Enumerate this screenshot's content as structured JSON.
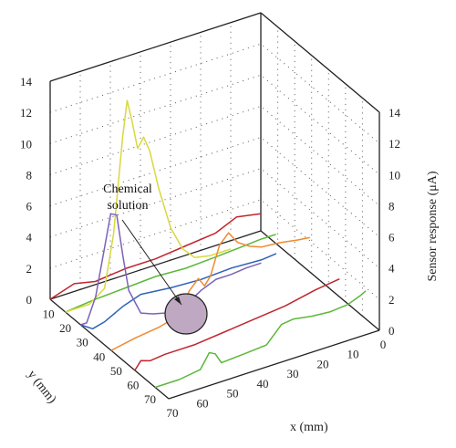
{
  "chart_data": {
    "type": "line",
    "projection": "3d",
    "x_axis": {
      "label": "x (mm)",
      "ticks": [
        "70",
        "60",
        "50",
        "40",
        "30",
        "20",
        "10",
        "0"
      ],
      "range": [
        0,
        70
      ]
    },
    "y_axis": {
      "label": "y (mm)",
      "ticks": [
        "10",
        "20",
        "30",
        "40",
        "50",
        "60",
        "70"
      ],
      "range": [
        0,
        70
      ]
    },
    "z_axis": {
      "label": "Sensor response (μA)",
      "ticks": [
        "0",
        "2",
        "4",
        "6",
        "8",
        "10",
        "12",
        "14"
      ],
      "range": [
        0,
        14
      ]
    },
    "grid": "dotted back walls",
    "annotation": {
      "line1": "Chemical",
      "line2": "solution"
    },
    "colors": {
      "red": "#c0262e",
      "green": "#5cb83a",
      "blue": "#2f62b8",
      "purple": "#7b62b8",
      "yellow": "#d8d840",
      "orange": "#ee8a2e",
      "blob": "#bfa8c2"
    },
    "series": [
      {
        "y": 0,
        "color": "red",
        "points": [
          [
            70,
            0
          ],
          [
            62,
            0.5
          ],
          [
            55,
            0.2
          ],
          [
            45,
            0.4
          ],
          [
            35,
            0.4
          ],
          [
            25,
            0.6
          ],
          [
            15,
            0.8
          ],
          [
            8,
            1.4
          ],
          [
            0,
            1.1
          ]
        ]
      },
      {
        "y": 9,
        "color": "green",
        "points": [
          [
            70,
            0
          ],
          [
            60,
            0.2
          ],
          [
            50,
            0.3
          ],
          [
            40,
            0.4
          ],
          [
            30,
            0.3
          ],
          [
            20,
            0.4
          ],
          [
            12,
            0.5
          ],
          [
            5,
            0.6
          ],
          [
            0,
            0.6
          ]
        ]
      },
      {
        "y": 9,
        "color": "yellow",
        "points": [
          [
            70,
            0
          ],
          [
            62,
            0
          ],
          [
            57,
            0.7
          ],
          [
            54,
            4
          ],
          [
            51,
            10
          ],
          [
            49.5,
            12.3
          ],
          [
            48,
            11
          ],
          [
            46,
            9
          ],
          [
            44,
            9.6
          ],
          [
            42,
            8.6
          ],
          [
            39,
            6
          ],
          [
            35,
            3.2
          ],
          [
            31,
            1.6
          ],
          [
            27,
            0.8
          ],
          [
            22,
            0.6
          ],
          [
            18,
            0.6
          ],
          [
            15,
            0.6
          ]
        ]
      },
      {
        "y": 18,
        "color": "blue",
        "points": [
          [
            70,
            0
          ],
          [
            66,
            -0.5
          ],
          [
            62,
            -0.3
          ],
          [
            56,
            0.3
          ],
          [
            50,
            0.7
          ],
          [
            40,
            0.5
          ],
          [
            30,
            0.4
          ],
          [
            20,
            0.5
          ],
          [
            10,
            0.4
          ],
          [
            5,
            0.5
          ]
        ]
      },
      {
        "y": 18,
        "color": "purple",
        "points": [
          [
            70,
            0
          ],
          [
            68,
            0
          ],
          [
            65,
            1.5
          ],
          [
            62,
            4.5
          ],
          [
            60,
            6.5
          ],
          [
            58,
            6.3
          ],
          [
            56,
            3.6
          ],
          [
            54,
            1.2
          ],
          [
            50,
            -0.5
          ],
          [
            46,
            -0.8
          ],
          [
            42,
            -1
          ],
          [
            38,
            -0.6
          ],
          [
            34,
            -0.8
          ],
          [
            30,
            -0.3
          ],
          [
            25,
            0.1
          ],
          [
            20,
            0.1
          ],
          [
            15,
            0.2
          ],
          [
            10,
            0.2
          ]
        ]
      },
      {
        "y": 36,
        "color": "orange",
        "points": [
          [
            70,
            0
          ],
          [
            62,
            0.3
          ],
          [
            54,
            0.5
          ],
          [
            48,
            0.8
          ],
          [
            44,
            2.2
          ],
          [
            41,
            2.8
          ],
          [
            39,
            2.2
          ],
          [
            37,
            2.7
          ],
          [
            34,
            4.5
          ],
          [
            31,
            5.1
          ],
          [
            28,
            4.3
          ],
          [
            24,
            3.8
          ],
          [
            20,
            3.5
          ],
          [
            14,
            3.4
          ],
          [
            8,
            3.2
          ],
          [
            4,
            3.1
          ]
        ]
      },
      {
        "y": 50,
        "color": "red",
        "points": [
          [
            70,
            0
          ],
          [
            68,
            0.5
          ],
          [
            65,
            0.3
          ],
          [
            60,
            0.4
          ],
          [
            50,
            0.4
          ],
          [
            40,
            0.6
          ],
          [
            30,
            0.8
          ],
          [
            20,
            1
          ],
          [
            10,
            1.4
          ],
          [
            2,
            1.6
          ]
        ]
      },
      {
        "y": 62,
        "color": "green",
        "points": [
          [
            70,
            0
          ],
          [
            62,
            0
          ],
          [
            55,
            0.2
          ],
          [
            52,
            1.1
          ],
          [
            50,
            0.9
          ],
          [
            48,
            0.2
          ],
          [
            40,
            0.3
          ],
          [
            33,
            0.4
          ],
          [
            28,
            1.4
          ],
          [
            24,
            1.5
          ],
          [
            18,
            1.3
          ],
          [
            12,
            1.2
          ],
          [
            6,
            1.3
          ],
          [
            2,
            1.6
          ],
          [
            0,
            1.8
          ]
        ]
      }
    ]
  }
}
